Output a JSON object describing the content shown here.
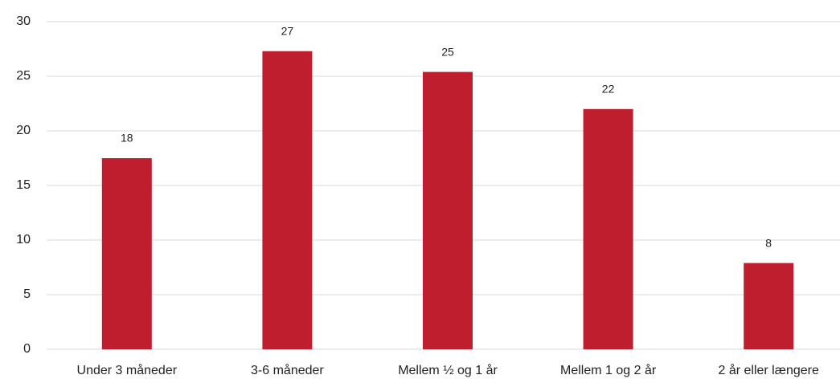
{
  "chart_data": {
    "type": "bar",
    "categories": [
      "Under 3 måneder",
      "3-6 måneder",
      "Mellem ½ og 1 år",
      "Mellem 1 og 2 år",
      "2 år eller længere"
    ],
    "values": [
      17.5,
      27.3,
      25.4,
      22,
      7.9
    ],
    "value_labels": [
      "18",
      "27",
      "25",
      "22",
      "8"
    ],
    "color": "#be1e2d",
    "ylim": [
      0,
      30
    ],
    "yticks": [
      0,
      5,
      10,
      15,
      20,
      25,
      30
    ],
    "grid": true
  }
}
